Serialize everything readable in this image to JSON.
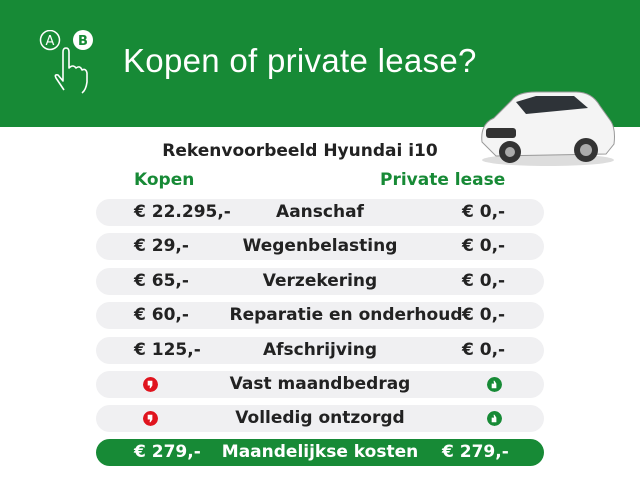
{
  "header": {
    "title": "Kopen of private lease?",
    "icon": "ab-choice-hand-icon",
    "icon_letters": [
      "A",
      "B"
    ]
  },
  "subtitle": "Rekenvoorbeeld Hyundai i10",
  "columns": {
    "left": "Kopen",
    "right": "Private lease"
  },
  "rows": [
    {
      "label": "Aanschaf",
      "kopen": "€ 22.295,-",
      "lease": "€ 0,-"
    },
    {
      "label": "Wegenbelasting",
      "kopen": "€ 29,-",
      "lease": "€ 0,-"
    },
    {
      "label": "Verzekering",
      "kopen": "€ 65,-",
      "lease": "€ 0,-"
    },
    {
      "label": "Reparatie en onderhoud",
      "kopen": "€ 60,-",
      "lease": "€ 0,-"
    },
    {
      "label": "Afschrijving",
      "kopen": "€ 125,-",
      "lease": "€ 0,-"
    },
    {
      "label": "Vast maandbedrag",
      "kopen_icon": "thumbs-down-icon",
      "lease_icon": "thumbs-up-icon"
    },
    {
      "label": "Volledig ontzorgd",
      "kopen_icon": "thumbs-down-icon",
      "lease_icon": "thumbs-up-icon"
    }
  ],
  "total": {
    "label": "Maandelijkse kosten",
    "kopen": "€ 279,-",
    "lease": "€ 279,-"
  },
  "colors": {
    "brand_green": "#178a36",
    "thumbs_down": "#e0141e",
    "row_bg": "#f0f0f2"
  }
}
